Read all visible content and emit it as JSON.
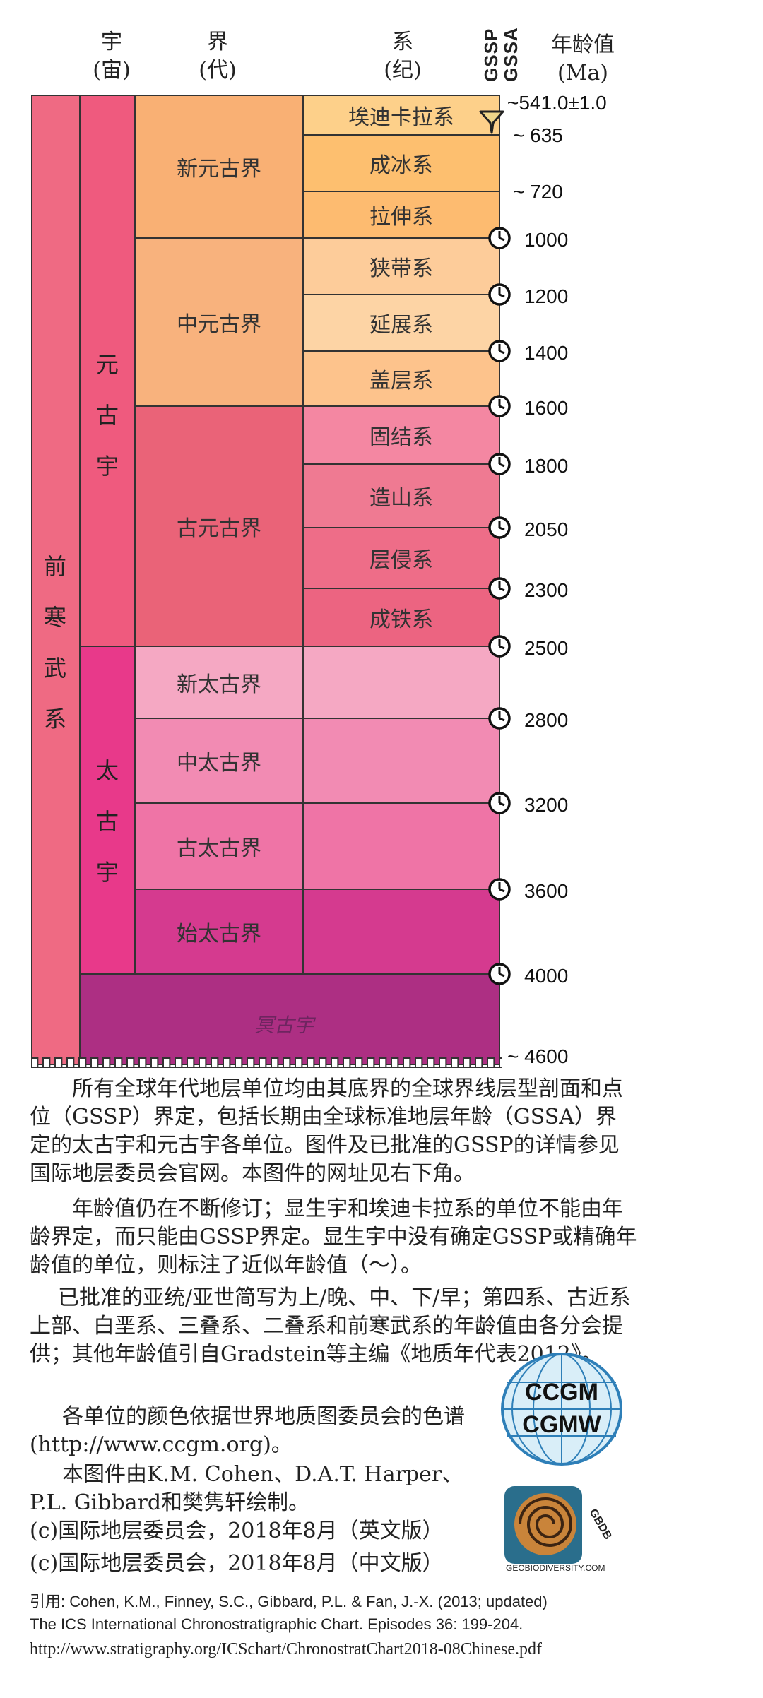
{
  "header": {
    "eon": [
      "宇",
      "(宙)"
    ],
    "era": [
      "界",
      "(代)"
    ],
    "period": [
      "系",
      "(纪)"
    ],
    "gssp": "GSSP",
    "gssa": "GSSA",
    "age": [
      "年龄值",
      "(Ma)"
    ]
  },
  "eonothem_precambrian": [
    "前",
    "寒",
    "武",
    "系"
  ],
  "eons": {
    "proterozoic": [
      "元",
      "古",
      "宇"
    ],
    "archean": [
      "太",
      "古",
      "宇"
    ],
    "hadean": "冥古宇"
  },
  "eras": {
    "neoproterozoic": "新元古界",
    "mesoproterozoic": "中元古界",
    "paleoproterozoic": "古元古界",
    "neoarchean": "新太古界",
    "mesoarchean": "中太古界",
    "paleoarchean": "古太古界",
    "eoarchean": "始太古界"
  },
  "periods": [
    "埃迪卡拉系",
    "成冰系",
    "拉伸系",
    "狭带系",
    "延展系",
    "盖层系",
    "固结系",
    "造山系",
    "层侵系",
    "成铁系"
  ],
  "ages": [
    "~541.0±1.0",
    "~ 635",
    "~ 720",
    "1000",
    "1200",
    "1400",
    "1600",
    "1800",
    "2050",
    "2300",
    "2500",
    "2800",
    "3200",
    "3600",
    "4000",
    "~ 4600"
  ],
  "colors": {
    "precambrian": "#ef6a83",
    "proterozoic": "#ef5a7e",
    "archean": "#e8398a",
    "hadean": "#ad2f83",
    "neoproterozoic": "#f9b074",
    "ediacaran": "#fdd08a",
    "cryogenian": "#fdbf6f",
    "tonian": "#fdbb70",
    "mesoproterozoic": "#f8b27d",
    "ectasian": "#fdcc9a",
    "stenian": "#fdd4a5",
    "calymmian": "#fdc38c",
    "paleoproterozoic": "#ea6378",
    "statherian": "#f487a2",
    "orosirian": "#ef7a92",
    "rhyacian": "#ee6d88",
    "siderian": "#ec6481",
    "neoarchean": "#f5a8c3",
    "mesoarchean": "#f28bb3",
    "paleoarchean": "#ef74a6",
    "eoarchean": "#d53a8f"
  },
  "paragraphs": [
    "所有全球年代地层单位均由其底界的全球界线层型剖面和点位（GSSP）界定，包括长期由全球标准地层年龄（GSSA）界定的太古宇和元古宇各单位。图件及已批准的GSSP的详情参见国际地层委员会官网。本图件的网址见右下角。",
    "年龄值仍在不断修订；显生宇和埃迪卡拉系的单位不能由年龄界定，而只能由GSSP界定。显生宇中没有确定GSSP或精确年龄值的单位，则标注了近似年龄值（～）。",
    "已批准的亚统/亚世简写为上/晚、中、下/早；第四系、古近系上部、白垩系、三叠系、二叠系和前寒武系的年龄值由各分会提供；其他年龄值引自Gradstein等主编《地质年代表2012》。",
    "各单位的颜色依据世界地质图委员会的色谱(http://www.ccgm.org)。",
    "本图件由K.M. Cohen、D.A.T. Harper、P.L. Gibbard和樊隽轩绘制。",
    "(c)国际地层委员会，2018年8月（英文版）",
    "(c)国际地层委员会，2018年8月（中文版）"
  ],
  "citation": [
    "引用: Cohen, K.M., Finney, S.C., Gibbard, P.L. & Fan, J.-X. (2013; updated)",
    "The ICS International Chronostratigraphic Chart. Episodes 36: 199-204."
  ],
  "url": "http://www.stratigraphy.org/ICSchart/ChronostratChart2018-08Chinese.pdf",
  "logos": {
    "ccgm_top": "CCGM",
    "ccgm_bottom": "CGMW",
    "gbdb": "GBDB",
    "gbdb_caption": "GEOBIODIVERSITY.COM"
  }
}
